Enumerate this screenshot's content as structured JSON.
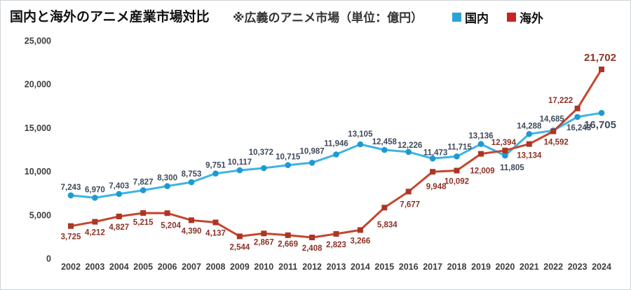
{
  "header": {
    "title": "国内と海外のアニメ産業市場対比",
    "note": "※広義のアニメ市場（単位：億円）",
    "legend": [
      {
        "label": "国内",
        "color": "#29A3D7"
      },
      {
        "label": "海外",
        "color": "#CC2222"
      }
    ]
  },
  "chart_data": {
    "type": "line",
    "title": "国内と海外のアニメ産業市場対比",
    "subtitle": "※広義のアニメ市場（単位：億円）",
    "unit": "億円",
    "grid": false,
    "legend_position": "top",
    "xlabel": "",
    "ylabel": "",
    "ylim": [
      0,
      25000
    ],
    "y_ticks": [
      0,
      5000,
      10000,
      15000,
      20000,
      25000
    ],
    "categories": [
      "2002",
      "2003",
      "2004",
      "2005",
      "2006",
      "2007",
      "2008",
      "2009",
      "2010",
      "2011",
      "2012",
      "2013",
      "2014",
      "2015",
      "2016",
      "2017",
      "2018",
      "2019",
      "2020",
      "2021",
      "2022",
      "2023",
      "2024"
    ],
    "series": [
      {
        "id": "domestic",
        "name": "国内",
        "marker": "circle",
        "line_color": "#3CB4E5",
        "marker_color": "#1D9AD3",
        "label_color": "#3F4A5A",
        "values": [
          7243,
          6970,
          7403,
          7827,
          8300,
          8753,
          9751,
          10117,
          10372,
          10715,
          10987,
          11946,
          13105,
          12458,
          12226,
          11473,
          11715,
          13136,
          11805,
          14288,
          14685,
          16243,
          16705
        ]
      },
      {
        "id": "overseas",
        "name": "海外",
        "marker": "square",
        "line_color": "#C5462F",
        "marker_color": "#AD3523",
        "label_color": "#8B3226",
        "values": [
          3725,
          4212,
          4827,
          5215,
          5204,
          4390,
          4137,
          2544,
          2867,
          2669,
          2408,
          2823,
          3266,
          5834,
          7677,
          9948,
          10092,
          12009,
          12394,
          13134,
          14592,
          17222,
          21702
        ]
      }
    ]
  }
}
